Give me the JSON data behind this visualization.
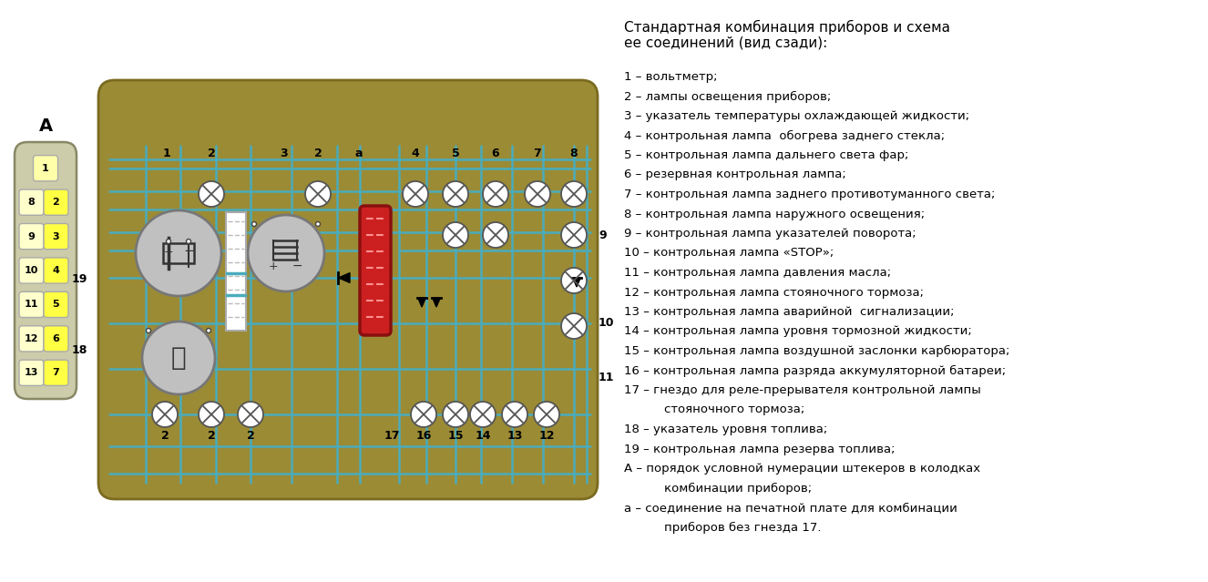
{
  "bg_color": "#ffffff",
  "board_color": "#9B8B35",
  "trace_color": "#4AACBC",
  "title_line1": "Стандартная комбинация приборов и схема",
  "title_line2": "ее соединений (вид сзади):",
  "legend_lines": [
    "1 – вольтметр;",
    "2 – лампы освещения приборов;",
    "3 – указатель температуры охлаждающей жидкости;",
    "4 – контрольная лампа  обогрева заднего стекла;",
    "5 – контрольная лампа дальнего света фар;",
    "6 – резервная контрольная лампа;",
    "7 – контрольная лампа заднего противотуманного света;",
    "8 – контрольная лампа наружного освещения;",
    "9 – контрольная лампа указателей поворота;",
    "10 – контрольная лампа «STOP»;",
    "11 – контрольная лампа давления масла;",
    "12 – контрольная лампа стояночного тормоза;",
    "13 – контрольная лампа аварийной  сигнализации;",
    "14 – контрольная лампа уровня тормозной жидкости;",
    "15 – контрольная лампа воздушной заслонки карбюратора;",
    "16 – контрольная лампа разряда аккумуляторной батареи;",
    "17 – гнездо для реле-прерывателя контрольной лампы",
    "        стояночного тормоза;",
    "18 – указатель уровня топлива;",
    "19 – контрольная лампа резерва топлива;",
    "А – порядок условной нумерации штекеров в колодках",
    "        комбинации приборов;",
    "а – соединение на печатной плате для комбинации",
    "        приборов без гнезда 17."
  ],
  "connector_rows": [
    [
      "1"
    ],
    [
      "8",
      "2"
    ],
    [
      "9",
      "3"
    ],
    [
      "10",
      "4"
    ],
    [
      "11",
      "5"
    ],
    [
      "12",
      "6"
    ],
    [
      "13",
      "7"
    ]
  ]
}
